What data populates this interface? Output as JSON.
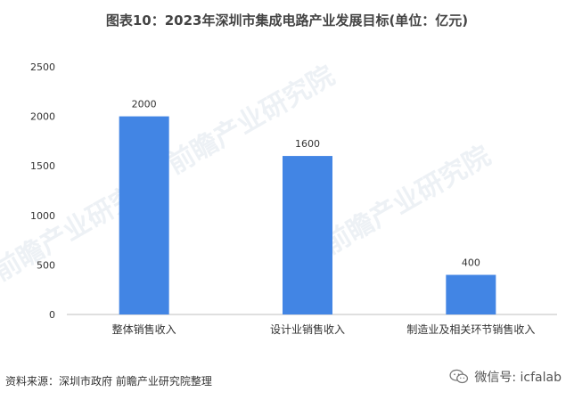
{
  "header": {
    "title": "图表10：2023年深圳市集成电路产业发展目标(单位：亿元)"
  },
  "chart_data": {
    "type": "bar",
    "categories": [
      "整体销售收入",
      "设计业销售收入",
      "制造业及相关环节销售收入"
    ],
    "values": [
      2000,
      1600,
      400
    ],
    "ylim": [
      0,
      2500
    ],
    "yticks": [
      0,
      500,
      1000,
      1500,
      2000,
      2500
    ],
    "grid": false,
    "bar_color": "#4285E4",
    "data_labels": true
  },
  "footer": {
    "source": "资料来源：深圳市政府 前瞻产业研究院整理",
    "wechat": "微信号: icfalab"
  },
  "watermark": {
    "text": "前瞻产业研究院"
  },
  "icons": {
    "wechat": "wechat-icon"
  }
}
